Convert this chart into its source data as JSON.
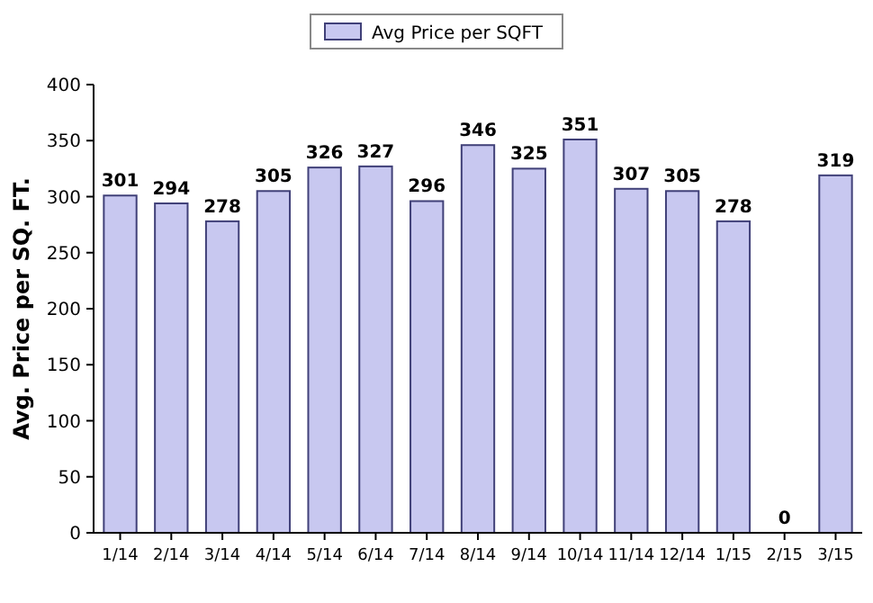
{
  "chart_data": {
    "type": "bar",
    "ylabel": "Avg. Price per SQ. FT.",
    "categories": [
      "1/14",
      "2/14",
      "3/14",
      "4/14",
      "5/14",
      "6/14",
      "7/14",
      "8/14",
      "9/14",
      "10/14",
      "11/14",
      "12/14",
      "1/15",
      "2/15",
      "3/15"
    ],
    "series": [
      {
        "name": "Avg Price per SQFT",
        "color": "#c8c8f0",
        "values": [
          301,
          294,
          278,
          305,
          326,
          327,
          296,
          346,
          325,
          351,
          307,
          305,
          278,
          0,
          319
        ]
      }
    ],
    "ylim": [
      0,
      400
    ],
    "yticks": [
      0,
      50,
      100,
      150,
      200,
      250,
      300,
      350,
      400
    ],
    "grid": false,
    "legend": "top",
    "data_labels": true
  }
}
